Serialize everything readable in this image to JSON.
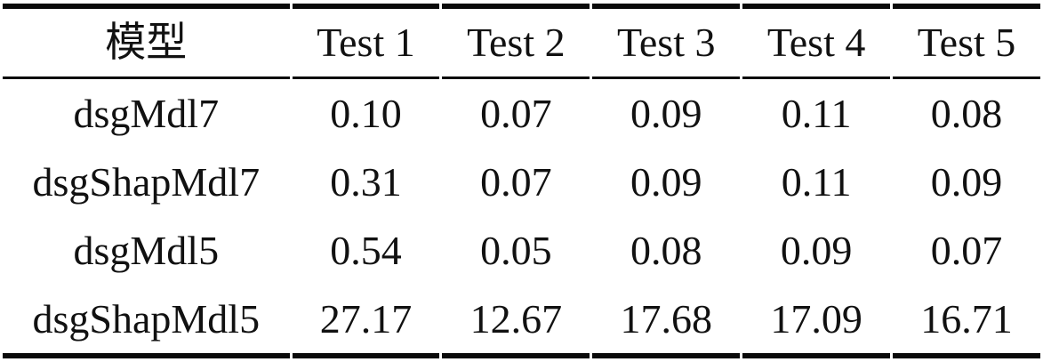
{
  "table": {
    "columns": [
      "模型",
      "Test 1",
      "Test 2",
      "Test 3",
      "Test 4",
      "Test 5"
    ],
    "rows": [
      [
        "dsgMdl7",
        "0.10",
        "0.07",
        "0.09",
        "0.11",
        "0.08"
      ],
      [
        "dsgShapMdl7",
        "0.31",
        "0.07",
        "0.09",
        "0.11",
        "0.09"
      ],
      [
        "dsgMdl5",
        "0.54",
        "0.05",
        "0.08",
        "0.09",
        "0.07"
      ],
      [
        "dsgShapMdl5",
        "27.17",
        "12.67",
        "17.68",
        "17.09",
        "16.71"
      ]
    ],
    "colors": {
      "text": "#111111",
      "rule": "#0a0a0a",
      "background": "#ffffff"
    }
  },
  "chart_data": {
    "type": "table",
    "title": "",
    "categories": [
      "Test 1",
      "Test 2",
      "Test 3",
      "Test 4",
      "Test 5"
    ],
    "series": [
      {
        "name": "dsgMdl7",
        "values": [
          0.1,
          0.07,
          0.09,
          0.11,
          0.08
        ]
      },
      {
        "name": "dsgShapMdl7",
        "values": [
          0.31,
          0.07,
          0.09,
          0.11,
          0.09
        ]
      },
      {
        "name": "dsgMdl5",
        "values": [
          0.54,
          0.05,
          0.08,
          0.09,
          0.07
        ]
      },
      {
        "name": "dsgShapMdl5",
        "values": [
          27.17,
          12.67,
          17.68,
          17.09,
          16.71
        ]
      }
    ]
  }
}
